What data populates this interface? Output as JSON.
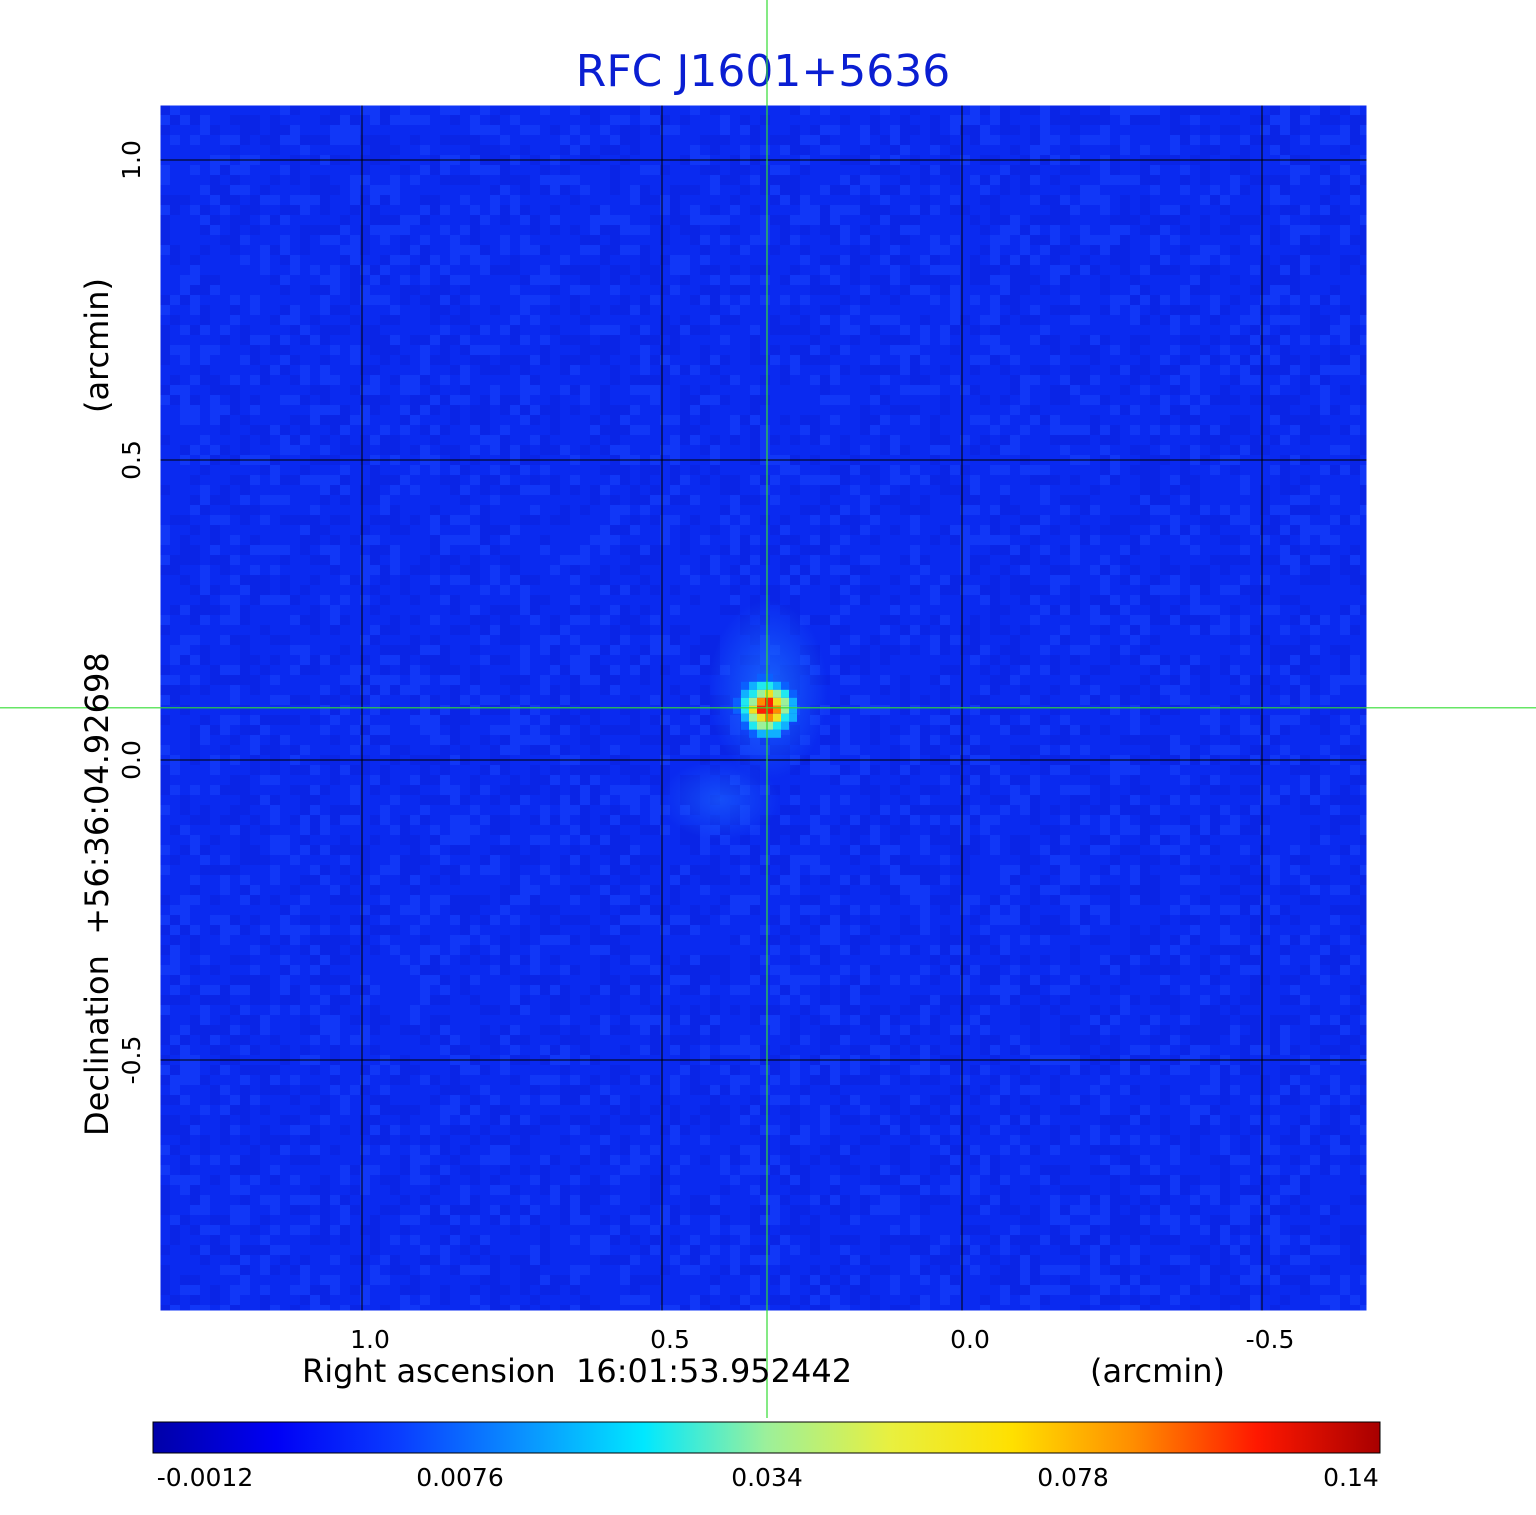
{
  "chart_data": {
    "type": "heatmap",
    "title": "RFC J1601+5636",
    "xaxis": {
      "label_left": "Right ascension  16:01:53.952442",
      "label_right": "(arcmin)",
      "ticks": [
        1.0,
        0.5,
        0.0,
        -0.5
      ],
      "tick_labels": [
        "1.0",
        "0.5",
        "0.0",
        "-0.5"
      ],
      "range": [
        1.34,
        -0.68
      ]
    },
    "yaxis": {
      "label_main": "Declination  +56:36:04.92698",
      "label_unit": "(arcmin)",
      "ticks": [
        1.0,
        0.5,
        0.0,
        -0.5
      ],
      "tick_labels": [
        "1.0",
        "0.5",
        "0.0",
        "-0.5"
      ],
      "range": [
        -0.92,
        1.09
      ]
    },
    "grid": true,
    "crosshair": {
      "x": 0.325,
      "y": 0.087,
      "color": "#33dd33"
    },
    "source": {
      "x": 0.325,
      "y": 0.087,
      "peak": 0.14
    },
    "colorbar": {
      "ticks": [
        -0.0012,
        0.0076,
        0.034,
        0.078,
        0.14
      ],
      "tick_labels": [
        "-0.0012",
        "0.0076",
        "0.034",
        "0.078",
        "0.14"
      ],
      "colormap": "jet"
    },
    "colors": {
      "title": "#0a1ed2",
      "background_field": "#0a2af0",
      "grid": "#000000",
      "frame": "#ffffff"
    }
  }
}
